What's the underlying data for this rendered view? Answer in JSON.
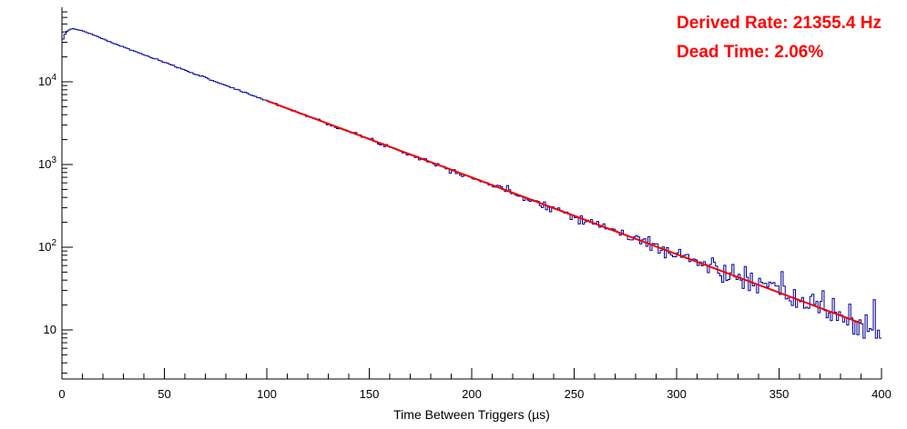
{
  "chart_data": {
    "type": "line",
    "subtype": "step-histogram-log-y",
    "title": "",
    "xlabel": "Time Between Triggers (µs)",
    "ylabel": "",
    "xlim": [
      0,
      400
    ],
    "ylim": [
      2.55,
      79600
    ],
    "x_ticks": [
      0,
      50,
      100,
      150,
      200,
      250,
      300,
      350,
      400
    ],
    "x_minor_step": 10,
    "y_scale": "log",
    "y_ticks": [
      10,
      100,
      1000,
      10000
    ],
    "grid": false,
    "legend": "none",
    "hist_color": "#00009a",
    "fit_color": "#ee0000",
    "axis_color": "#000000",
    "bin_width": 1,
    "noise_seed": 7,
    "anchors": [
      [
        0,
        30000
      ],
      [
        2,
        40500
      ],
      [
        5,
        44000
      ],
      [
        8,
        42800
      ],
      [
        15,
        37200
      ],
      [
        25,
        29300
      ],
      [
        50,
        17160
      ],
      [
        75,
        10070
      ],
      [
        100,
        5900
      ],
      [
        150,
        2028
      ],
      [
        200,
        697
      ],
      [
        250,
        239.6
      ],
      [
        300,
        82.4
      ],
      [
        350,
        28.3
      ],
      [
        400,
        9.7
      ]
    ],
    "fit": {
      "x_start": 100,
      "x_end": 390,
      "N_at_start": 5900,
      "rate_per_us": 0.0213554
    },
    "annotations": [
      {
        "text": "Derived Rate: 21355.4 Hz",
        "color": "#ff0000"
      },
      {
        "text": "Dead Time: 2.06%",
        "color": "#ff0000"
      }
    ]
  }
}
